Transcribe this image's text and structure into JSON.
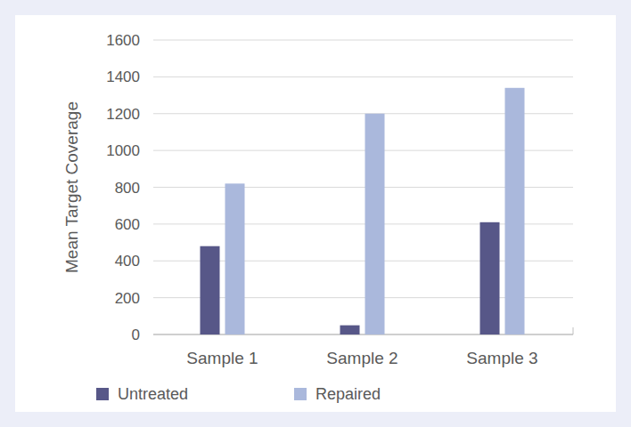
{
  "chart_data": {
    "type": "bar",
    "y_label": "Mean Target Coverage",
    "categories": [
      "Sample 1",
      "Sample 2",
      "Sample 3"
    ],
    "series": [
      {
        "name": "Untreated",
        "color": "#575788",
        "values": [
          480,
          50,
          610
        ]
      },
      {
        "name": "Repaired",
        "color": "#aab8dc",
        "values": [
          820,
          1200,
          1340
        ]
      }
    ],
    "ylim": [
      0,
      1600
    ],
    "yticks": [
      0,
      200,
      400,
      600,
      800,
      1000,
      1200,
      1400,
      1600
    ],
    "grid": true,
    "legend": "bottom"
  }
}
